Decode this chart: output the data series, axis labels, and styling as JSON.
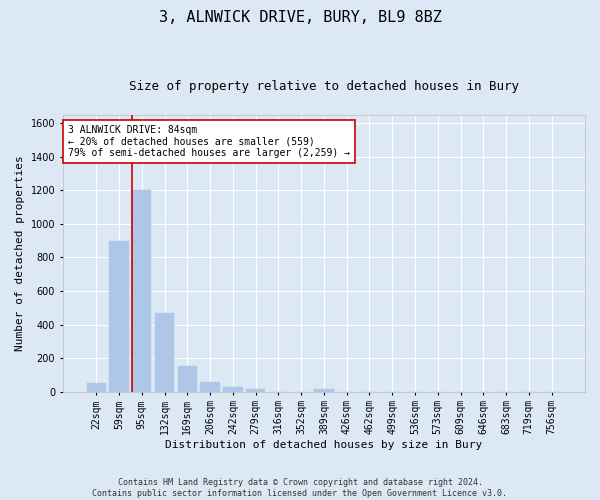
{
  "title": "3, ALNWICK DRIVE, BURY, BL9 8BZ",
  "subtitle": "Size of property relative to detached houses in Bury",
  "xlabel": "Distribution of detached houses by size in Bury",
  "ylabel": "Number of detached properties",
  "footnote": "Contains HM Land Registry data © Crown copyright and database right 2024.\nContains public sector information licensed under the Open Government Licence v3.0.",
  "categories": [
    "22sqm",
    "59sqm",
    "95sqm",
    "132sqm",
    "169sqm",
    "206sqm",
    "242sqm",
    "279sqm",
    "316sqm",
    "352sqm",
    "389sqm",
    "426sqm",
    "462sqm",
    "499sqm",
    "536sqm",
    "573sqm",
    "609sqm",
    "646sqm",
    "683sqm",
    "719sqm",
    "756sqm"
  ],
  "values": [
    50,
    900,
    1200,
    470,
    150,
    55,
    25,
    15,
    0,
    0,
    15,
    0,
    0,
    0,
    0,
    0,
    0,
    0,
    0,
    0,
    0
  ],
  "bar_color": "#aec6e8",
  "bar_edge_color": "#aec6e8",
  "vline_x_index": 1.57,
  "vline_color": "#cc0000",
  "annotation_text": "3 ALNWICK DRIVE: 84sqm\n← 20% of detached houses are smaller (559)\n79% of semi-detached houses are larger (2,259) →",
  "annotation_box_facecolor": "#ffffff",
  "annotation_box_edgecolor": "#cc0000",
  "ylim": [
    0,
    1650
  ],
  "yticks": [
    0,
    200,
    400,
    600,
    800,
    1000,
    1200,
    1400,
    1600
  ],
  "bg_color": "#dce9f5",
  "plot_bg_color": "#dce9f5",
  "grid_color": "#ffffff",
  "title_fontsize": 11,
  "subtitle_fontsize": 9,
  "axis_label_fontsize": 8,
  "tick_fontsize": 7,
  "annotation_fontsize": 7,
  "footnote_fontsize": 6
}
